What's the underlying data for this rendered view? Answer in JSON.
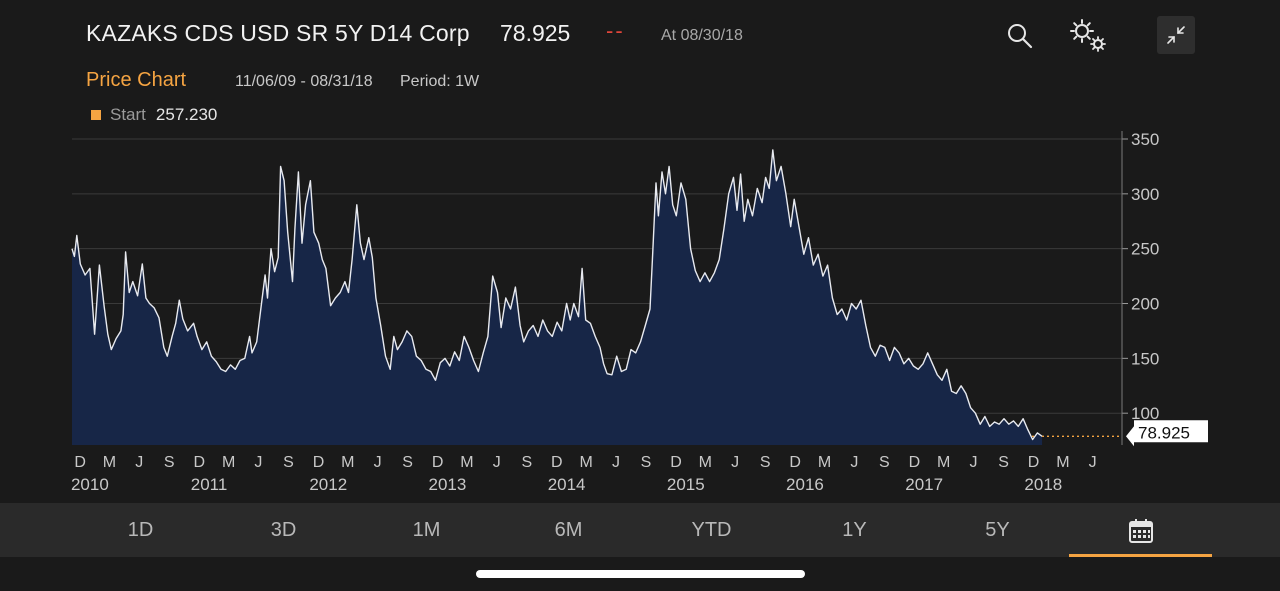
{
  "header": {
    "title": "KAZAKS CDS USD SR 5Y D14 Corp",
    "last_price": "78.925",
    "change": "--",
    "as_of": "At 08/30/18",
    "icons": [
      "search-icon",
      "gear-icon",
      "collapse-icon"
    ]
  },
  "subheader": {
    "chart_title": "Price Chart",
    "date_range": "11/06/09 - 08/31/18",
    "period": "Period: 1W"
  },
  "legend": {
    "name": "Start",
    "value": "257.230",
    "color": "#f5a442"
  },
  "chart_data": {
    "type": "area",
    "ylim": [
      71,
      350
    ],
    "yticks": [
      100,
      150,
      200,
      250,
      300,
      350
    ],
    "xlim": [
      2009.85,
      2018.66
    ],
    "month_ticks": [
      {
        "x": 2009.918,
        "label": "D"
      },
      {
        "x": 2010.164,
        "label": "M"
      },
      {
        "x": 2010.414,
        "label": "J"
      },
      {
        "x": 2010.666,
        "label": "S"
      },
      {
        "x": 2010.918,
        "label": "D"
      },
      {
        "x": 2011.164,
        "label": "M"
      },
      {
        "x": 2011.414,
        "label": "J"
      },
      {
        "x": 2011.666,
        "label": "S"
      },
      {
        "x": 2011.918,
        "label": "D"
      },
      {
        "x": 2012.164,
        "label": "M"
      },
      {
        "x": 2012.414,
        "label": "J"
      },
      {
        "x": 2012.666,
        "label": "S"
      },
      {
        "x": 2012.918,
        "label": "D"
      },
      {
        "x": 2013.164,
        "label": "M"
      },
      {
        "x": 2013.414,
        "label": "J"
      },
      {
        "x": 2013.666,
        "label": "S"
      },
      {
        "x": 2013.918,
        "label": "D"
      },
      {
        "x": 2014.164,
        "label": "M"
      },
      {
        "x": 2014.414,
        "label": "J"
      },
      {
        "x": 2014.666,
        "label": "S"
      },
      {
        "x": 2014.918,
        "label": "D"
      },
      {
        "x": 2015.164,
        "label": "M"
      },
      {
        "x": 2015.414,
        "label": "J"
      },
      {
        "x": 2015.666,
        "label": "S"
      },
      {
        "x": 2015.918,
        "label": "D"
      },
      {
        "x": 2016.164,
        "label": "M"
      },
      {
        "x": 2016.414,
        "label": "J"
      },
      {
        "x": 2016.666,
        "label": "S"
      },
      {
        "x": 2016.918,
        "label": "D"
      },
      {
        "x": 2017.164,
        "label": "M"
      },
      {
        "x": 2017.414,
        "label": "J"
      },
      {
        "x": 2017.666,
        "label": "S"
      },
      {
        "x": 2017.918,
        "label": "D"
      },
      {
        "x": 2018.164,
        "label": "M"
      },
      {
        "x": 2018.414,
        "label": "J"
      }
    ],
    "year_labels": [
      {
        "x": 2010.0,
        "label": "2010"
      },
      {
        "x": 2011.0,
        "label": "2011"
      },
      {
        "x": 2012.0,
        "label": "2012"
      },
      {
        "x": 2013.0,
        "label": "2013"
      },
      {
        "x": 2014.0,
        "label": "2014"
      },
      {
        "x": 2015.0,
        "label": "2015"
      },
      {
        "x": 2016.0,
        "label": "2016"
      },
      {
        "x": 2017.0,
        "label": "2017"
      },
      {
        "x": 2018.0,
        "label": "2018"
      }
    ],
    "series": [
      {
        "values": [
          [
            2009.85,
            250
          ],
          [
            2009.87,
            243
          ],
          [
            2009.89,
            262
          ],
          [
            2009.92,
            236
          ],
          [
            2009.96,
            226
          ],
          [
            2010.0,
            232
          ],
          [
            2010.04,
            172
          ],
          [
            2010.08,
            235
          ],
          [
            2010.12,
            197
          ],
          [
            2010.15,
            172
          ],
          [
            2010.18,
            158
          ],
          [
            2010.22,
            168
          ],
          [
            2010.26,
            175
          ],
          [
            2010.28,
            190
          ],
          [
            2010.3,
            247
          ],
          [
            2010.33,
            210
          ],
          [
            2010.36,
            220
          ],
          [
            2010.4,
            207
          ],
          [
            2010.44,
            236
          ],
          [
            2010.47,
            205
          ],
          [
            2010.5,
            200
          ],
          [
            2010.54,
            196
          ],
          [
            2010.58,
            187
          ],
          [
            2010.62,
            160
          ],
          [
            2010.65,
            152
          ],
          [
            2010.69,
            170
          ],
          [
            2010.72,
            182
          ],
          [
            2010.75,
            203
          ],
          [
            2010.78,
            186
          ],
          [
            2010.82,
            175
          ],
          [
            2010.87,
            182
          ],
          [
            2010.9,
            170
          ],
          [
            2010.94,
            158
          ],
          [
            2010.98,
            165
          ],
          [
            2011.02,
            152
          ],
          [
            2011.06,
            147
          ],
          [
            2011.1,
            140
          ],
          [
            2011.14,
            138
          ],
          [
            2011.18,
            144
          ],
          [
            2011.22,
            140
          ],
          [
            2011.26,
            148
          ],
          [
            2011.3,
            150
          ],
          [
            2011.34,
            170
          ],
          [
            2011.36,
            155
          ],
          [
            2011.4,
            165
          ],
          [
            2011.44,
            200
          ],
          [
            2011.47,
            226
          ],
          [
            2011.49,
            205
          ],
          [
            2011.52,
            250
          ],
          [
            2011.55,
            229
          ],
          [
            2011.58,
            242
          ],
          [
            2011.6,
            325
          ],
          [
            2011.63,
            312
          ],
          [
            2011.66,
            265
          ],
          [
            2011.7,
            220
          ],
          [
            2011.72,
            268
          ],
          [
            2011.75,
            320
          ],
          [
            2011.78,
            255
          ],
          [
            2011.81,
            290
          ],
          [
            2011.85,
            312
          ],
          [
            2011.88,
            265
          ],
          [
            2011.92,
            255
          ],
          [
            2011.95,
            240
          ],
          [
            2011.98,
            232
          ],
          [
            2012.02,
            198
          ],
          [
            2012.06,
            205
          ],
          [
            2012.1,
            210
          ],
          [
            2012.14,
            220
          ],
          [
            2012.17,
            210
          ],
          [
            2012.2,
            240
          ],
          [
            2012.24,
            290
          ],
          [
            2012.27,
            255
          ],
          [
            2012.3,
            240
          ],
          [
            2012.34,
            260
          ],
          [
            2012.37,
            242
          ],
          [
            2012.4,
            205
          ],
          [
            2012.44,
            180
          ],
          [
            2012.48,
            152
          ],
          [
            2012.52,
            140
          ],
          [
            2012.55,
            170
          ],
          [
            2012.58,
            158
          ],
          [
            2012.62,
            165
          ],
          [
            2012.66,
            175
          ],
          [
            2012.7,
            170
          ],
          [
            2012.74,
            152
          ],
          [
            2012.78,
            148
          ],
          [
            2012.82,
            140
          ],
          [
            2012.86,
            138
          ],
          [
            2012.9,
            130
          ],
          [
            2012.94,
            146
          ],
          [
            2012.98,
            150
          ],
          [
            2013.02,
            143
          ],
          [
            2013.06,
            156
          ],
          [
            2013.1,
            148
          ],
          [
            2013.14,
            170
          ],
          [
            2013.18,
            160
          ],
          [
            2013.22,
            148
          ],
          [
            2013.26,
            138
          ],
          [
            2013.3,
            155
          ],
          [
            2013.34,
            170
          ],
          [
            2013.38,
            225
          ],
          [
            2013.42,
            210
          ],
          [
            2013.45,
            178
          ],
          [
            2013.49,
            205
          ],
          [
            2013.53,
            195
          ],
          [
            2013.57,
            215
          ],
          [
            2013.61,
            180
          ],
          [
            2013.64,
            165
          ],
          [
            2013.68,
            175
          ],
          [
            2013.72,
            180
          ],
          [
            2013.76,
            170
          ],
          [
            2013.8,
            185
          ],
          [
            2013.84,
            175
          ],
          [
            2013.88,
            170
          ],
          [
            2013.92,
            183
          ],
          [
            2013.96,
            175
          ],
          [
            2014.0,
            200
          ],
          [
            2014.03,
            185
          ],
          [
            2014.06,
            200
          ],
          [
            2014.1,
            188
          ],
          [
            2014.13,
            232
          ],
          [
            2014.16,
            185
          ],
          [
            2014.2,
            182
          ],
          [
            2014.24,
            170
          ],
          [
            2014.28,
            160
          ],
          [
            2014.31,
            145
          ],
          [
            2014.34,
            136
          ],
          [
            2014.38,
            135
          ],
          [
            2014.42,
            152
          ],
          [
            2014.46,
            138
          ],
          [
            2014.5,
            140
          ],
          [
            2014.54,
            158
          ],
          [
            2014.58,
            155
          ],
          [
            2014.62,
            165
          ],
          [
            2014.66,
            180
          ],
          [
            2014.7,
            195
          ],
          [
            2014.72,
            240
          ],
          [
            2014.75,
            310
          ],
          [
            2014.77,
            280
          ],
          [
            2014.8,
            320
          ],
          [
            2014.83,
            300
          ],
          [
            2014.86,
            325
          ],
          [
            2014.89,
            290
          ],
          [
            2014.92,
            280
          ],
          [
            2014.96,
            310
          ],
          [
            2015.0,
            295
          ],
          [
            2015.04,
            250
          ],
          [
            2015.08,
            230
          ],
          [
            2015.12,
            220
          ],
          [
            2015.16,
            228
          ],
          [
            2015.2,
            220
          ],
          [
            2015.24,
            228
          ],
          [
            2015.28,
            240
          ],
          [
            2015.32,
            268
          ],
          [
            2015.36,
            300
          ],
          [
            2015.4,
            315
          ],
          [
            2015.43,
            285
          ],
          [
            2015.46,
            318
          ],
          [
            2015.49,
            275
          ],
          [
            2015.52,
            295
          ],
          [
            2015.56,
            280
          ],
          [
            2015.6,
            305
          ],
          [
            2015.64,
            292
          ],
          [
            2015.67,
            315
          ],
          [
            2015.7,
            305
          ],
          [
            2015.73,
            340
          ],
          [
            2015.76,
            312
          ],
          [
            2015.8,
            325
          ],
          [
            2015.84,
            300
          ],
          [
            2015.88,
            270
          ],
          [
            2015.91,
            295
          ],
          [
            2015.95,
            270
          ],
          [
            2015.99,
            245
          ],
          [
            2016.03,
            260
          ],
          [
            2016.07,
            235
          ],
          [
            2016.11,
            245
          ],
          [
            2016.15,
            225
          ],
          [
            2016.19,
            235
          ],
          [
            2016.23,
            205
          ],
          [
            2016.27,
            190
          ],
          [
            2016.31,
            195
          ],
          [
            2016.35,
            185
          ],
          [
            2016.39,
            200
          ],
          [
            2016.43,
            195
          ],
          [
            2016.47,
            203
          ],
          [
            2016.51,
            180
          ],
          [
            2016.55,
            160
          ],
          [
            2016.59,
            152
          ],
          [
            2016.63,
            162
          ],
          [
            2016.67,
            160
          ],
          [
            2016.71,
            148
          ],
          [
            2016.75,
            160
          ],
          [
            2016.79,
            155
          ],
          [
            2016.83,
            145
          ],
          [
            2016.87,
            150
          ],
          [
            2016.91,
            143
          ],
          [
            2016.95,
            140
          ],
          [
            2016.99,
            145
          ],
          [
            2017.03,
            155
          ],
          [
            2017.07,
            145
          ],
          [
            2017.11,
            135
          ],
          [
            2017.15,
            130
          ],
          [
            2017.19,
            140
          ],
          [
            2017.23,
            120
          ],
          [
            2017.27,
            118
          ],
          [
            2017.31,
            125
          ],
          [
            2017.35,
            118
          ],
          [
            2017.39,
            105
          ],
          [
            2017.43,
            100
          ],
          [
            2017.47,
            90
          ],
          [
            2017.51,
            97
          ],
          [
            2017.55,
            88
          ],
          [
            2017.59,
            92
          ],
          [
            2017.63,
            90
          ],
          [
            2017.67,
            95
          ],
          [
            2017.71,
            90
          ],
          [
            2017.75,
            93
          ],
          [
            2017.79,
            88
          ],
          [
            2017.83,
            95
          ],
          [
            2017.87,
            85
          ],
          [
            2017.91,
            76
          ],
          [
            2017.95,
            82
          ],
          [
            2017.99,
            78.925
          ]
        ]
      }
    ]
  },
  "price_tag": "78.925",
  "tabs": [
    {
      "label": "1D"
    },
    {
      "label": "3D"
    },
    {
      "label": "1M"
    },
    {
      "label": "6M"
    },
    {
      "label": "YTD"
    },
    {
      "label": "1Y"
    },
    {
      "label": "5Y"
    },
    {
      "label": "",
      "icon": "calendar-icon",
      "active": true
    }
  ],
  "colors": {
    "accent": "#f5a442",
    "negative": "#e0453a",
    "area_fill": "#172647",
    "line": "#e8eaf0",
    "background": "#1a1a1a"
  }
}
